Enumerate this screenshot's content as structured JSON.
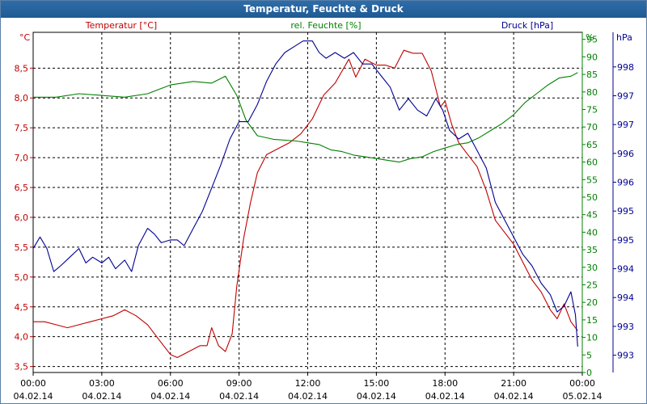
{
  "window": {
    "title": "Temperatur, Feuchte & Druck"
  },
  "chart_data": {
    "type": "line",
    "title": "Temperatur, Feuchte & Druck",
    "grid": true,
    "x_ticks": [
      {
        "h": 0,
        "time": "00:00",
        "date": "04.02.14"
      },
      {
        "h": 3,
        "time": "03:00",
        "date": "04.02.14"
      },
      {
        "h": 6,
        "time": "06:00",
        "date": "04.02.14"
      },
      {
        "h": 9,
        "time": "09:00",
        "date": "04.02.14"
      },
      {
        "h": 12,
        "time": "12:00",
        "date": "04.02.14"
      },
      {
        "h": 15,
        "time": "15:00",
        "date": "04.02.14"
      },
      {
        "h": 18,
        "time": "18:00",
        "date": "04.02.14"
      },
      {
        "h": 21,
        "time": "21:00",
        "date": "04.02.14"
      },
      {
        "h": 24,
        "time": "00:00",
        "date": "05.02.14"
      }
    ],
    "axes": {
      "temperature": {
        "label": "Temperatur [°C]",
        "unit": "°C",
        "color": "#c00000",
        "range": [
          3.4,
          9.1
        ],
        "ticks": [
          "3,5",
          "4,0",
          "4,5",
          "5,0",
          "5,5",
          "6,0",
          "6,5",
          "7,0",
          "7,5",
          "8,0",
          "8,5"
        ],
        "tick_values": [
          3.5,
          4.0,
          4.5,
          5.0,
          5.5,
          6.0,
          6.5,
          7.0,
          7.5,
          8.0,
          8.5
        ]
      },
      "humidity": {
        "label": "rel. Feuchte [%]",
        "unit": "%",
        "color": "#008000",
        "range": [
          0,
          97
        ],
        "ticks": [
          "0",
          "5",
          "10",
          "15",
          "20",
          "25",
          "30",
          "35",
          "40",
          "45",
          "50",
          "55",
          "60",
          "65",
          "70",
          "75",
          "80",
          "85",
          "90",
          "95"
        ],
        "tick_values": [
          0,
          5,
          10,
          15,
          20,
          25,
          30,
          35,
          40,
          45,
          50,
          55,
          60,
          65,
          70,
          75,
          80,
          85,
          90,
          95
        ]
      },
      "pressure": {
        "label": "Druck [hPa]",
        "unit": "hPa",
        "color": "#000090",
        "range": [
          992.7,
          998.6
        ],
        "ticks": [
          "993",
          "993",
          "994",
          "994",
          "995",
          "995",
          "996",
          "996",
          "997",
          "997",
          "998"
        ],
        "tick_values": [
          993.0,
          993.5,
          994.0,
          994.5,
          995.0,
          995.5,
          996.0,
          996.5,
          997.0,
          997.5,
          998.0
        ]
      }
    },
    "series": [
      {
        "name": "Temperatur [°C]",
        "axis": "temperature",
        "color": "#c00000",
        "points": [
          [
            0,
            4.25
          ],
          [
            0.5,
            4.25
          ],
          [
            1,
            4.2
          ],
          [
            1.5,
            4.15
          ],
          [
            2,
            4.2
          ],
          [
            2.5,
            4.25
          ],
          [
            3,
            4.3
          ],
          [
            3.5,
            4.35
          ],
          [
            4,
            4.45
          ],
          [
            4.5,
            4.35
          ],
          [
            5,
            4.2
          ],
          [
            5.5,
            3.95
          ],
          [
            6,
            3.7
          ],
          [
            6.3,
            3.65
          ],
          [
            6.8,
            3.75
          ],
          [
            7.3,
            3.85
          ],
          [
            7.6,
            3.85
          ],
          [
            7.8,
            4.15
          ],
          [
            8.1,
            3.85
          ],
          [
            8.4,
            3.75
          ],
          [
            8.7,
            4.05
          ],
          [
            8.9,
            4.85
          ],
          [
            9.2,
            5.65
          ],
          [
            9.5,
            6.25
          ],
          [
            9.8,
            6.75
          ],
          [
            10.2,
            7.05
          ],
          [
            10.7,
            7.15
          ],
          [
            11.2,
            7.25
          ],
          [
            11.7,
            7.4
          ],
          [
            12.2,
            7.65
          ],
          [
            12.7,
            8.05
          ],
          [
            13.2,
            8.25
          ],
          [
            13.5,
            8.45
          ],
          [
            13.8,
            8.65
          ],
          [
            14.1,
            8.35
          ],
          [
            14.5,
            8.65
          ],
          [
            15,
            8.55
          ],
          [
            15.4,
            8.55
          ],
          [
            15.8,
            8.5
          ],
          [
            16.2,
            8.8
          ],
          [
            16.6,
            8.75
          ],
          [
            17,
            8.75
          ],
          [
            17.4,
            8.45
          ],
          [
            17.8,
            7.85
          ],
          [
            18,
            7.95
          ],
          [
            18.3,
            7.55
          ],
          [
            18.6,
            7.25
          ],
          [
            19,
            7.05
          ],
          [
            19.4,
            6.85
          ],
          [
            19.8,
            6.45
          ],
          [
            20.2,
            5.95
          ],
          [
            20.6,
            5.75
          ],
          [
            21,
            5.55
          ],
          [
            21.4,
            5.25
          ],
          [
            21.8,
            4.95
          ],
          [
            22.2,
            4.75
          ],
          [
            22.6,
            4.45
          ],
          [
            22.9,
            4.3
          ],
          [
            23.2,
            4.55
          ],
          [
            23.5,
            4.25
          ],
          [
            23.8,
            4.1
          ]
        ]
      },
      {
        "name": "rel. Feuchte [%]",
        "axis": "humidity",
        "color": "#008000",
        "points": [
          [
            0,
            78.5
          ],
          [
            1,
            78.5
          ],
          [
            2,
            79.5
          ],
          [
            3,
            79
          ],
          [
            4,
            78.5
          ],
          [
            5,
            79.5
          ],
          [
            6,
            82
          ],
          [
            7,
            83
          ],
          [
            7.8,
            82.5
          ],
          [
            8.4,
            84.5
          ],
          [
            8.9,
            79
          ],
          [
            9.3,
            72
          ],
          [
            9.8,
            67.5
          ],
          [
            10.5,
            66.5
          ],
          [
            11.5,
            66
          ],
          [
            12,
            65.5
          ],
          [
            12.5,
            65
          ],
          [
            13,
            63.5
          ],
          [
            13.5,
            63
          ],
          [
            14,
            62
          ],
          [
            15,
            61
          ],
          [
            15.5,
            60.5
          ],
          [
            16,
            60
          ],
          [
            16.5,
            61
          ],
          [
            17,
            61.5
          ],
          [
            17.5,
            63
          ],
          [
            18,
            64
          ],
          [
            18.5,
            65
          ],
          [
            19,
            65.5
          ],
          [
            19.5,
            67
          ],
          [
            20,
            69
          ],
          [
            20.5,
            71
          ],
          [
            21,
            73.5
          ],
          [
            21.5,
            77
          ],
          [
            22,
            79.5
          ],
          [
            22.5,
            82
          ],
          [
            23,
            84
          ],
          [
            23.5,
            84.5
          ],
          [
            23.8,
            85.5
          ]
        ]
      },
      {
        "name": "Druck [hPa]",
        "axis": "pressure",
        "color": "#000090",
        "points": [
          [
            0,
            994.85
          ],
          [
            0.3,
            995.05
          ],
          [
            0.6,
            994.85
          ],
          [
            0.9,
            994.45
          ],
          [
            1.2,
            994.55
          ],
          [
            1.6,
            994.7
          ],
          [
            2,
            994.85
          ],
          [
            2.3,
            994.6
          ],
          [
            2.6,
            994.7
          ],
          [
            3,
            994.6
          ],
          [
            3.3,
            994.7
          ],
          [
            3.6,
            994.5
          ],
          [
            4,
            994.65
          ],
          [
            4.3,
            994.45
          ],
          [
            4.6,
            994.9
          ],
          [
            5,
            995.2
          ],
          [
            5.3,
            995.1
          ],
          [
            5.6,
            994.95
          ],
          [
            6,
            995.0
          ],
          [
            6.3,
            995.0
          ],
          [
            6.6,
            994.9
          ],
          [
            7,
            995.2
          ],
          [
            7.4,
            995.5
          ],
          [
            7.8,
            995.9
          ],
          [
            8.2,
            996.3
          ],
          [
            8.6,
            996.75
          ],
          [
            9,
            997.05
          ],
          [
            9.4,
            997.05
          ],
          [
            9.8,
            997.35
          ],
          [
            10.2,
            997.75
          ],
          [
            10.6,
            998.05
          ],
          [
            11,
            998.25
          ],
          [
            11.4,
            998.35
          ],
          [
            11.8,
            998.45
          ],
          [
            12.2,
            998.45
          ],
          [
            12.5,
            998.25
          ],
          [
            12.8,
            998.15
          ],
          [
            13.2,
            998.25
          ],
          [
            13.6,
            998.15
          ],
          [
            14,
            998.25
          ],
          [
            14.4,
            998.05
          ],
          [
            14.8,
            998.05
          ],
          [
            15.2,
            997.85
          ],
          [
            15.6,
            997.65
          ],
          [
            16,
            997.25
          ],
          [
            16.4,
            997.45
          ],
          [
            16.8,
            997.25
          ],
          [
            17.2,
            997.15
          ],
          [
            17.6,
            997.45
          ],
          [
            17.9,
            997.25
          ],
          [
            18.2,
            996.9
          ],
          [
            18.6,
            996.75
          ],
          [
            19,
            996.85
          ],
          [
            19.4,
            996.55
          ],
          [
            19.8,
            996.25
          ],
          [
            20.2,
            995.65
          ],
          [
            20.6,
            995.35
          ],
          [
            21,
            995.05
          ],
          [
            21.4,
            994.75
          ],
          [
            21.8,
            994.55
          ],
          [
            22.2,
            994.25
          ],
          [
            22.6,
            994.05
          ],
          [
            22.9,
            993.75
          ],
          [
            23.2,
            993.85
          ],
          [
            23.5,
            994.1
          ],
          [
            23.7,
            993.7
          ],
          [
            23.8,
            993.15
          ]
        ]
      }
    ]
  }
}
